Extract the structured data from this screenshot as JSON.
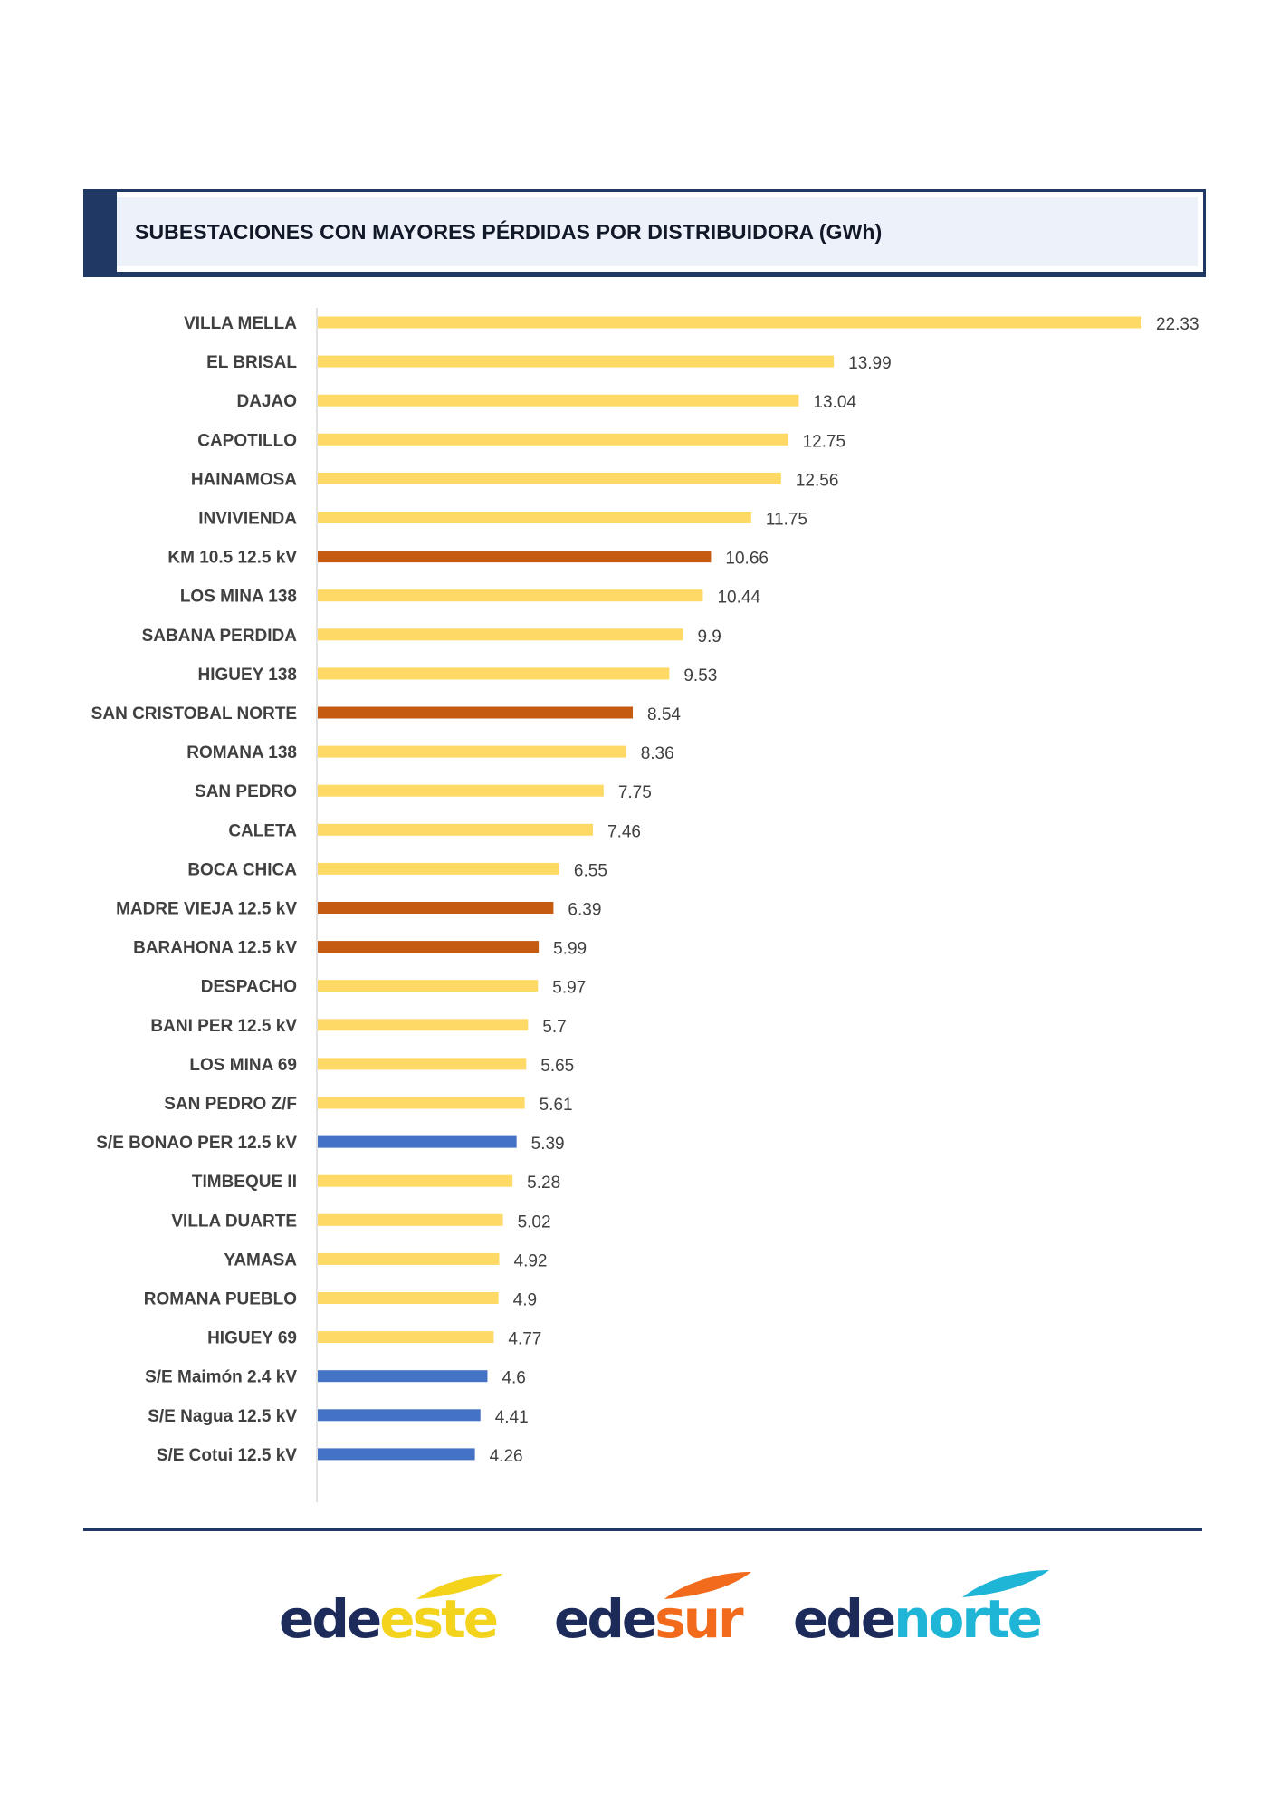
{
  "header": {
    "title": "SUBESTACIONES CON MAYORES PÉRDIDAS POR DISTRIBUIDORA (GWh)"
  },
  "colors": {
    "edeeste": "#ffd966",
    "edesur": "#c55a11",
    "edenorte": "#4472c4",
    "navy": "#1f3864"
  },
  "chart_data": {
    "type": "bar",
    "orientation": "horizontal",
    "title": "SUBESTACIONES CON MAYORES PÉRDIDAS POR DISTRIBUIDORA (GWh)",
    "xlabel": "",
    "ylabel": "",
    "xlim": [
      0,
      22.33
    ],
    "grid": false,
    "bars": [
      {
        "label": "VILLA MELLA",
        "value": 22.33,
        "value_text": "22.33",
        "group": "edeeste"
      },
      {
        "label": "EL BRISAL",
        "value": 13.99,
        "value_text": "13.99",
        "group": "edeeste"
      },
      {
        "label": "DAJAO",
        "value": 13.04,
        "value_text": "13.04",
        "group": "edeeste"
      },
      {
        "label": "CAPOTILLO",
        "value": 12.75,
        "value_text": "12.75",
        "group": "edeeste"
      },
      {
        "label": "HAINAMOSA",
        "value": 12.56,
        "value_text": "12.56",
        "group": "edeeste"
      },
      {
        "label": "INVIVIENDA",
        "value": 11.75,
        "value_text": "11.75",
        "group": "edeeste"
      },
      {
        "label": "KM 10.5 12.5 kV",
        "value": 10.66,
        "value_text": "10.66",
        "group": "edesur"
      },
      {
        "label": "LOS MINA 138",
        "value": 10.44,
        "value_text": "10.44",
        "group": "edeeste"
      },
      {
        "label": "SABANA PERDIDA",
        "value": 9.9,
        "value_text": "9.9",
        "group": "edeeste"
      },
      {
        "label": "HIGUEY 138",
        "value": 9.53,
        "value_text": "9.53",
        "group": "edeeste"
      },
      {
        "label": "SAN CRISTOBAL NORTE",
        "value": 8.54,
        "value_text": "8.54",
        "group": "edesur"
      },
      {
        "label": "ROMANA 138",
        "value": 8.36,
        "value_text": "8.36",
        "group": "edeeste"
      },
      {
        "label": "SAN PEDRO",
        "value": 7.75,
        "value_text": "7.75",
        "group": "edeeste"
      },
      {
        "label": "CALETA",
        "value": 7.46,
        "value_text": "7.46",
        "group": "edeeste"
      },
      {
        "label": "BOCA CHICA",
        "value": 6.55,
        "value_text": "6.55",
        "group": "edeeste"
      },
      {
        "label": "MADRE VIEJA 12.5 kV",
        "value": 6.39,
        "value_text": "6.39",
        "group": "edesur"
      },
      {
        "label": "BARAHONA 12.5 kV",
        "value": 5.99,
        "value_text": "5.99",
        "group": "edesur"
      },
      {
        "label": "DESPACHO",
        "value": 5.97,
        "value_text": "5.97",
        "group": "edeeste"
      },
      {
        "label": "BANI PER 12.5 kV",
        "value": 5.7,
        "value_text": "5.7",
        "group": "edeeste"
      },
      {
        "label": "LOS MINA 69",
        "value": 5.65,
        "value_text": "5.65",
        "group": "edeeste"
      },
      {
        "label": "SAN PEDRO Z/F",
        "value": 5.61,
        "value_text": "5.61",
        "group": "edeeste"
      },
      {
        "label": "S/E BONAO PER 12.5 kV",
        "value": 5.39,
        "value_text": "5.39",
        "group": "edenorte"
      },
      {
        "label": "TIMBEQUE II",
        "value": 5.28,
        "value_text": "5.28",
        "group": "edeeste"
      },
      {
        "label": "VILLA DUARTE",
        "value": 5.02,
        "value_text": "5.02",
        "group": "edeeste"
      },
      {
        "label": "YAMASA",
        "value": 4.92,
        "value_text": "4.92",
        "group": "edeeste"
      },
      {
        "label": "ROMANA PUEBLO",
        "value": 4.9,
        "value_text": "4.9",
        "group": "edeeste"
      },
      {
        "label": "HIGUEY 69",
        "value": 4.77,
        "value_text": "4.77",
        "group": "edeeste"
      },
      {
        "label": "S/E Maimón 2.4 kV",
        "value": 4.6,
        "value_text": "4.6",
        "group": "edenorte"
      },
      {
        "label": "S/E Nagua 12.5 kV",
        "value": 4.41,
        "value_text": "4.41",
        "group": "edenorte"
      },
      {
        "label": "S/E Cotui 12.5 kV",
        "value": 4.26,
        "value_text": "4.26",
        "group": "edenorte"
      }
    ]
  },
  "footer": {
    "logos": [
      {
        "prefix": "ede",
        "suffix": "este",
        "color": "#f4d31c"
      },
      {
        "prefix": "ede",
        "suffix": "sur",
        "color": "#f26a1b"
      },
      {
        "prefix": "ede",
        "suffix": "norte",
        "color": "#1fb5d6"
      }
    ]
  }
}
